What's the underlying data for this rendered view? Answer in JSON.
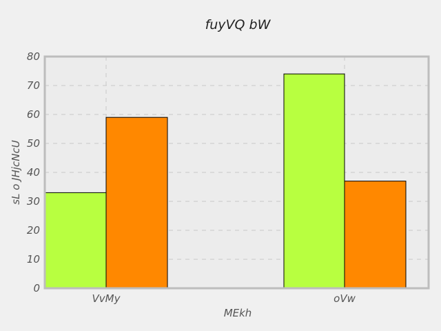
{
  "chart_data": {
    "type": "bar",
    "title": "fuyVQ bW",
    "xlabel": "MEkh",
    "ylabel": "sL o JHjcNcU",
    "categories": [
      "VvMy",
      "oVw"
    ],
    "series": [
      {
        "values": [
          33,
          74
        ],
        "color": "#b8ff40"
      },
      {
        "values": [
          59,
          37
        ],
        "color": "#ff8800"
      }
    ],
    "ylim": [
      0,
      80
    ],
    "yticks": [
      0,
      10,
      20,
      30,
      40,
      50,
      60,
      70,
      80
    ],
    "grid": true,
    "legend": "none"
  }
}
